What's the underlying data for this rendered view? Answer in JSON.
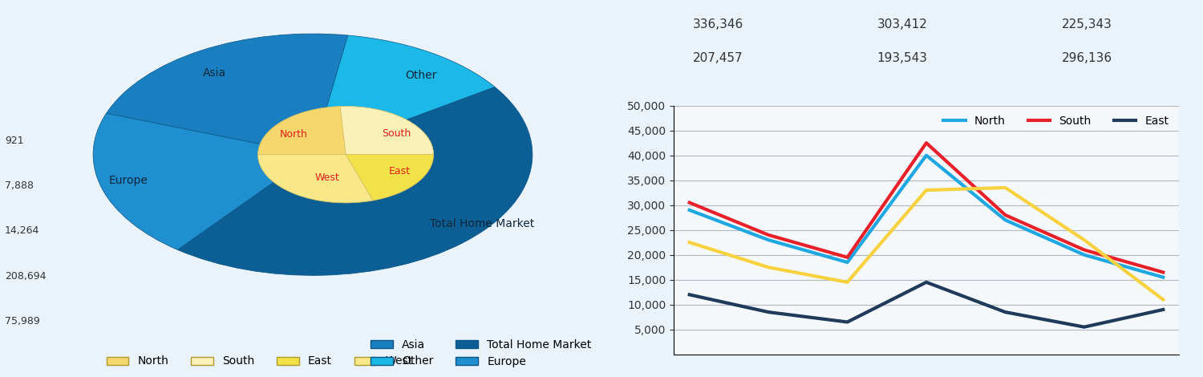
{
  "chart_data": [
    {
      "type": "pie",
      "categories": [
        "Asia",
        "Other",
        "Total Home Market",
        "Europe"
      ],
      "values": [
        22,
        13,
        45,
        20
      ],
      "colors": [
        "#1a7fc0",
        "#1cb8e8",
        "#0b5f94",
        "#1f8fd0"
      ],
      "legend": "lower right",
      "inner": {
        "type": "pie",
        "categories": [
          "North",
          "South",
          "East",
          "West"
        ],
        "values": [
          24,
          26,
          20,
          30
        ],
        "colors": [
          "#f5d76e",
          "#faf0b8",
          "#f2e24a",
          "#f8e88a"
        ],
        "legend": "lower left"
      }
    },
    {
      "type": "line",
      "categories": [
        null,
        null,
        null,
        null,
        null,
        null,
        null
      ],
      "series": [
        {
          "name": "North",
          "color": "#1ea7e1",
          "values": [
            29000,
            23000,
            18500,
            40000,
            27000,
            20000,
            15500
          ]
        },
        {
          "name": "South",
          "color": "#e8202a",
          "values": [
            30500,
            24000,
            19500,
            42500,
            28000,
            21000,
            16500
          ]
        },
        {
          "name": "East",
          "color": "#1f3a5a",
          "values": [
            12000,
            8500,
            6500,
            14500,
            8500,
            5500,
            9000
          ]
        },
        {
          "color": "#f7d23e",
          "values": [
            22500,
            17500,
            14500,
            33000,
            33500,
            23000,
            11000
          ]
        }
      ],
      "ylim": [
        0,
        50000
      ],
      "yticks": [
        {
          "value": 5000,
          "label": "5,000"
        },
        {
          "value": 10000,
          "label": "10,000"
        },
        {
          "value": 15000,
          "label": "15,000"
        },
        {
          "value": 20000,
          "label": "20,000"
        },
        {
          "value": 25000,
          "label": "25,000"
        },
        {
          "value": 30000,
          "label": "30,000"
        },
        {
          "value": 35000,
          "label": "35,000"
        },
        {
          "value": 40000,
          "label": "40,000"
        },
        {
          "value": 45000,
          "label": "45,000"
        },
        {
          "value": 50000,
          "label": "50,000"
        }
      ],
      "grid": true,
      "legend": "upper right",
      "tick_labels": "y"
    }
  ],
  "table": {
    "rows": [
      [
        "336,346",
        "303,412",
        "225,343"
      ],
      [
        "207,457",
        "193,543",
        "296,136"
      ]
    ]
  },
  "side_column": [
    "921",
    "7,888",
    "14,264",
    "208,694",
    "75,989"
  ]
}
